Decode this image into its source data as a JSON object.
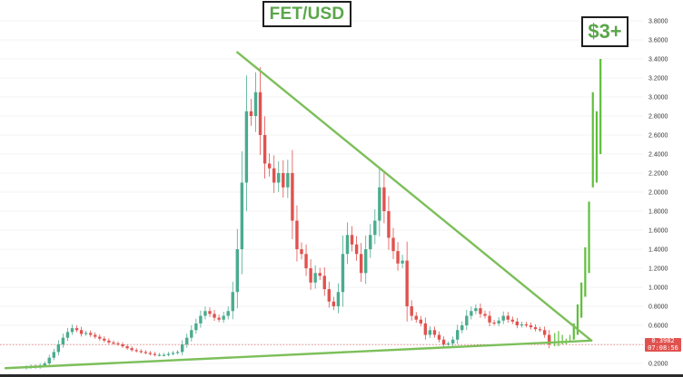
{
  "header": {
    "title": "FET/USD",
    "target_label": "$3+"
  },
  "price_tag": {
    "price": "0.3982",
    "countdown": "07:08:56"
  },
  "colors": {
    "up": "#4bab8e",
    "down": "#e0524f",
    "trendline": "#7cbf5a",
    "projection": "#5fbf3c",
    "label_green": "#5aa64a",
    "axis_text": "#333333",
    "price_line": "#e0524f"
  },
  "chart_data": {
    "type": "candlestick",
    "title": "FET/USD",
    "xlabel": "",
    "ylabel": "",
    "ylim": [
      0.14,
      3.9
    ],
    "y_ticks": [
      "3.8000",
      "3.6000",
      "3.4000",
      "3.2000",
      "3.0000",
      "2.8000",
      "2.6000",
      "2.4000",
      "2.2000",
      "2.0000",
      "1.8000",
      "1.6000",
      "1.4000",
      "1.2000",
      "1.0000",
      "0.8000",
      "0.6000",
      "0.4000",
      "0.2000"
    ],
    "y_tick_values": [
      3.8,
      3.6,
      3.4,
      3.2,
      3.0,
      2.8,
      2.6,
      2.4,
      2.2,
      2.0,
      1.8,
      1.6,
      1.4,
      1.2,
      1.0,
      0.8,
      0.6,
      0.4,
      0.2
    ],
    "last_price": 0.3982,
    "closes": [
      0.16,
      0.17,
      0.16,
      0.18,
      0.2,
      0.26,
      0.32,
      0.4,
      0.47,
      0.53,
      0.57,
      0.55,
      0.51,
      0.52,
      0.5,
      0.48,
      0.46,
      0.44,
      0.42,
      0.41,
      0.4,
      0.38,
      0.36,
      0.34,
      0.33,
      0.32,
      0.31,
      0.3,
      0.29,
      0.29,
      0.29,
      0.3,
      0.31,
      0.32,
      0.4,
      0.47,
      0.55,
      0.62,
      0.7,
      0.75,
      0.72,
      0.68,
      0.66,
      0.7,
      0.75,
      0.95,
      1.4,
      2.1,
      2.85,
      2.8,
      3.05,
      2.6,
      2.3,
      2.25,
      2.1,
      2.2,
      2.05,
      2.2,
      1.7,
      1.4,
      1.35,
      1.2,
      1.05,
      1.15,
      1.12,
      0.98,
      0.85,
      0.8,
      0.95,
      1.35,
      1.55,
      1.45,
      1.35,
      1.15,
      1.4,
      1.55,
      1.7,
      2.05,
      1.8,
      1.52,
      1.38,
      1.25,
      1.28,
      0.8,
      0.7,
      0.66,
      0.62,
      0.5,
      0.55,
      0.5,
      0.45,
      0.4,
      0.41,
      0.45,
      0.55,
      0.6,
      0.7,
      0.75,
      0.78,
      0.72,
      0.7,
      0.63,
      0.62,
      0.65,
      0.7,
      0.66,
      0.64,
      0.6,
      0.61,
      0.6,
      0.58,
      0.56,
      0.55,
      0.5,
      0.4
    ],
    "projection_bars": [
      [
        0.38,
        0.52
      ],
      [
        0.38,
        0.54
      ],
      [
        0.4,
        0.5
      ],
      [
        0.4,
        0.46
      ],
      [
        0.42,
        0.5
      ],
      [
        0.45,
        0.62
      ],
      [
        0.5,
        0.82
      ],
      [
        0.68,
        1.05
      ],
      [
        0.9,
        1.42
      ],
      [
        1.15,
        1.9
      ],
      [
        2.05,
        3.05
      ],
      [
        2.1,
        2.85
      ],
      [
        2.4,
        3.4
      ]
    ],
    "trendlines": [
      {
        "from": [
          0,
          0.15
        ],
        "to": [
          123,
          0.44
        ]
      },
      {
        "from": [
          46,
          3.47
        ],
        "to": [
          123,
          0.44
        ]
      }
    ],
    "annotations": [
      "FET/USD",
      "$3+"
    ]
  }
}
